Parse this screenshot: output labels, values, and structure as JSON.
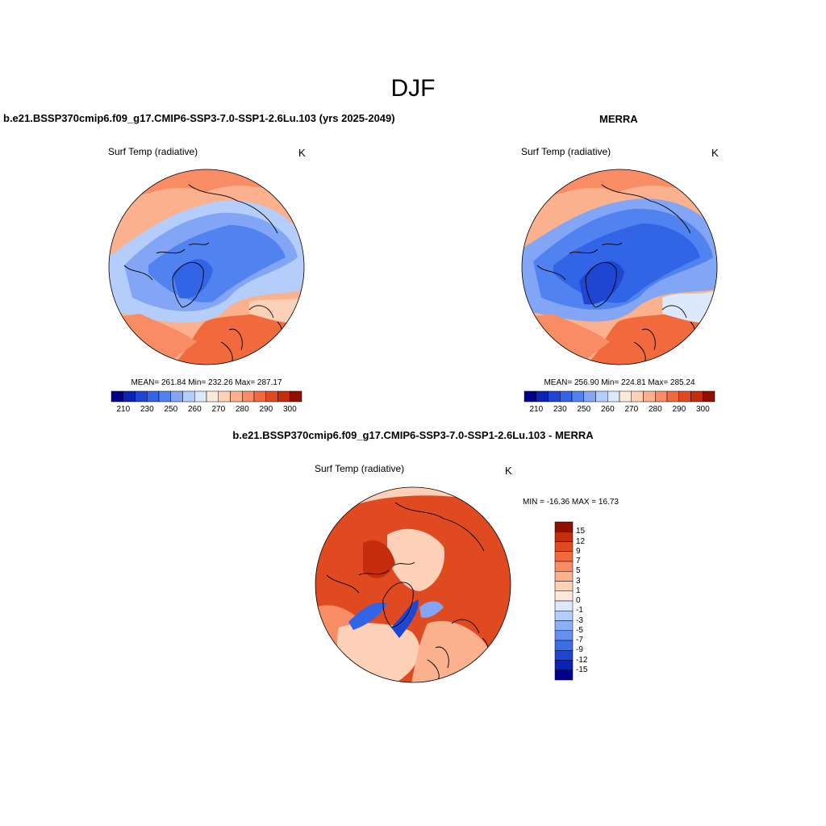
{
  "figure": {
    "title": "DJF",
    "units": "K",
    "variable": "Surf Temp (radiative)"
  },
  "colors": {
    "abs_scale": [
      "#00008b",
      "#0a23b4",
      "#1e46d2",
      "#3264e6",
      "#5082f0",
      "#82a5f5",
      "#b4cdfa",
      "#dce9fc",
      "#fde9d9",
      "#fcd1b8",
      "#fbb08e",
      "#f88c64",
      "#f06a3e",
      "#e04a20",
      "#c42d0c",
      "#8f0f00"
    ],
    "diff_scale": [
      "#00008b",
      "#0a23b4",
      "#1e46d2",
      "#3c6ee6",
      "#6491f0",
      "#8cb0f5",
      "#b4cdfa",
      "#dce9fc",
      "#fde9d9",
      "#fcd1b8",
      "#fbb08e",
      "#f88c64",
      "#f06a3e",
      "#e04a20",
      "#c42d0c",
      "#8f0f00"
    ]
  },
  "panels": {
    "model": {
      "title": "b.e21.BSSP370cmip6.f09_g17.CMIP6-SSP3-7.0-SSP1-2.6Lu.103 (yrs 2025-2049)",
      "stats": "MEAN= 261.84  Min= 232.26  Max= 287.17"
    },
    "obs": {
      "title": "MERRA",
      "stats": "MEAN= 256.90  Min= 224.81  Max= 285.24"
    },
    "diff": {
      "title": "b.e21.BSSP370cmip6.f09_g17.CMIP6-SSP3-7.0-SSP1-2.6Lu.103 - MERRA",
      "stats": "MIN = -16.36 MAX =  16.73"
    }
  },
  "chart_data": [
    {
      "type": "heatmap",
      "projection": "north-polar-stereographic",
      "title": "b.e21.BSSP370cmip6.f09_g17.CMIP6-SSP3-7.0-SSP1-2.6Lu.103 (yrs 2025-2049)",
      "variable": "Surf Temp (radiative)",
      "units": "K",
      "mean": 261.84,
      "min": 232.26,
      "max": 287.17,
      "colorbar_levels": [
        205,
        210,
        220,
        230,
        240,
        250,
        255,
        260,
        265,
        270,
        275,
        280,
        285,
        290,
        295,
        300
      ],
      "colorbar_tick_labels": [
        "210",
        "230",
        "250",
        "260",
        "270",
        "280",
        "290",
        "300"
      ]
    },
    {
      "type": "heatmap",
      "projection": "north-polar-stereographic",
      "title": "MERRA",
      "variable": "Surf Temp (radiative)",
      "units": "K",
      "mean": 256.9,
      "min": 224.81,
      "max": 285.24,
      "colorbar_levels": [
        205,
        210,
        220,
        230,
        240,
        250,
        255,
        260,
        265,
        270,
        275,
        280,
        285,
        290,
        295,
        300
      ],
      "colorbar_tick_labels": [
        "210",
        "230",
        "250",
        "260",
        "270",
        "280",
        "290",
        "300"
      ]
    },
    {
      "type": "heatmap",
      "projection": "north-polar-stereographic",
      "title": "b.e21.BSSP370cmip6.f09_g17.CMIP6-SSP3-7.0-SSP1-2.6Lu.103 - MERRA",
      "variable": "Surf Temp (radiative)",
      "units": "K",
      "min": -16.36,
      "max": 16.73,
      "colorbar_levels": [
        -15,
        -12,
        -9,
        -7,
        -5,
        -3,
        -1,
        0,
        1,
        3,
        5,
        7,
        9,
        12,
        15
      ],
      "colorbar_tick_labels": [
        "15",
        "12",
        "9",
        "7",
        "5",
        "3",
        "1",
        "0",
        "-1",
        "-3",
        "-5",
        "-7",
        "-9",
        "-12",
        "-15"
      ]
    }
  ]
}
